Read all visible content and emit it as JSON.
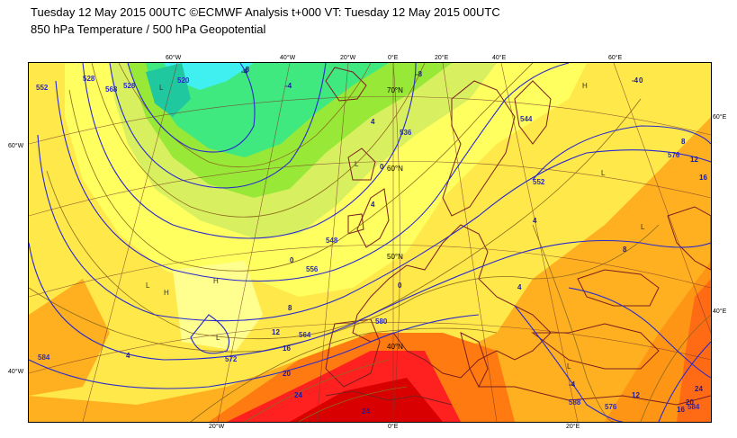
{
  "header": {
    "line1": "Tuesday 12 May 2015 00UTC ©ECMWF Analysis t+000 VT: Tuesday 12 May 2015 00UTC",
    "line2": "850 hPa Temperature / 500 hPa Geopotential"
  },
  "graticule": {
    "top_longitudes": [
      "60°W",
      "40°W",
      "20°W",
      "0°E",
      "20°E",
      "40°E",
      "60°E"
    ],
    "bottom_longitudes": [
      "20°W",
      "0°E",
      "20°E"
    ],
    "left_latitudes": [
      "60°W",
      "40°W"
    ],
    "right_latitudes": [
      "60°E",
      "40°E"
    ],
    "inner_latitudes": [
      "70°N",
      "60°N",
      "50°N",
      "40°N"
    ]
  },
  "contour_labels": {
    "geopotential": [
      "552",
      "528",
      "520",
      "528",
      "536",
      "544",
      "548",
      "556",
      "564",
      "572",
      "580",
      "576",
      "584",
      "584",
      "588",
      "576",
      "568",
      "552"
    ],
    "temperature": [
      "-8",
      "-4",
      "0",
      "4",
      "8",
      "12",
      "16",
      "20",
      "24",
      "24",
      "4",
      "0",
      "-4",
      "-8",
      "4",
      "8",
      "12",
      "16",
      "20",
      "24",
      "4",
      "-4",
      "0",
      "8",
      "12",
      "16",
      "4",
      "0",
      "-4"
    ]
  },
  "pressure_centres": [
    "L",
    "L",
    "H",
    "L",
    "H",
    "L",
    "L",
    "L",
    "L",
    "H"
  ],
  "colors": {
    "ocean_frame": "#000000",
    "coast": "#7a1f1f",
    "geopotential_lines": "#2a2acc",
    "temperature_lines": "#8b6b1e",
    "grid": "#7a3a2a"
  }
}
